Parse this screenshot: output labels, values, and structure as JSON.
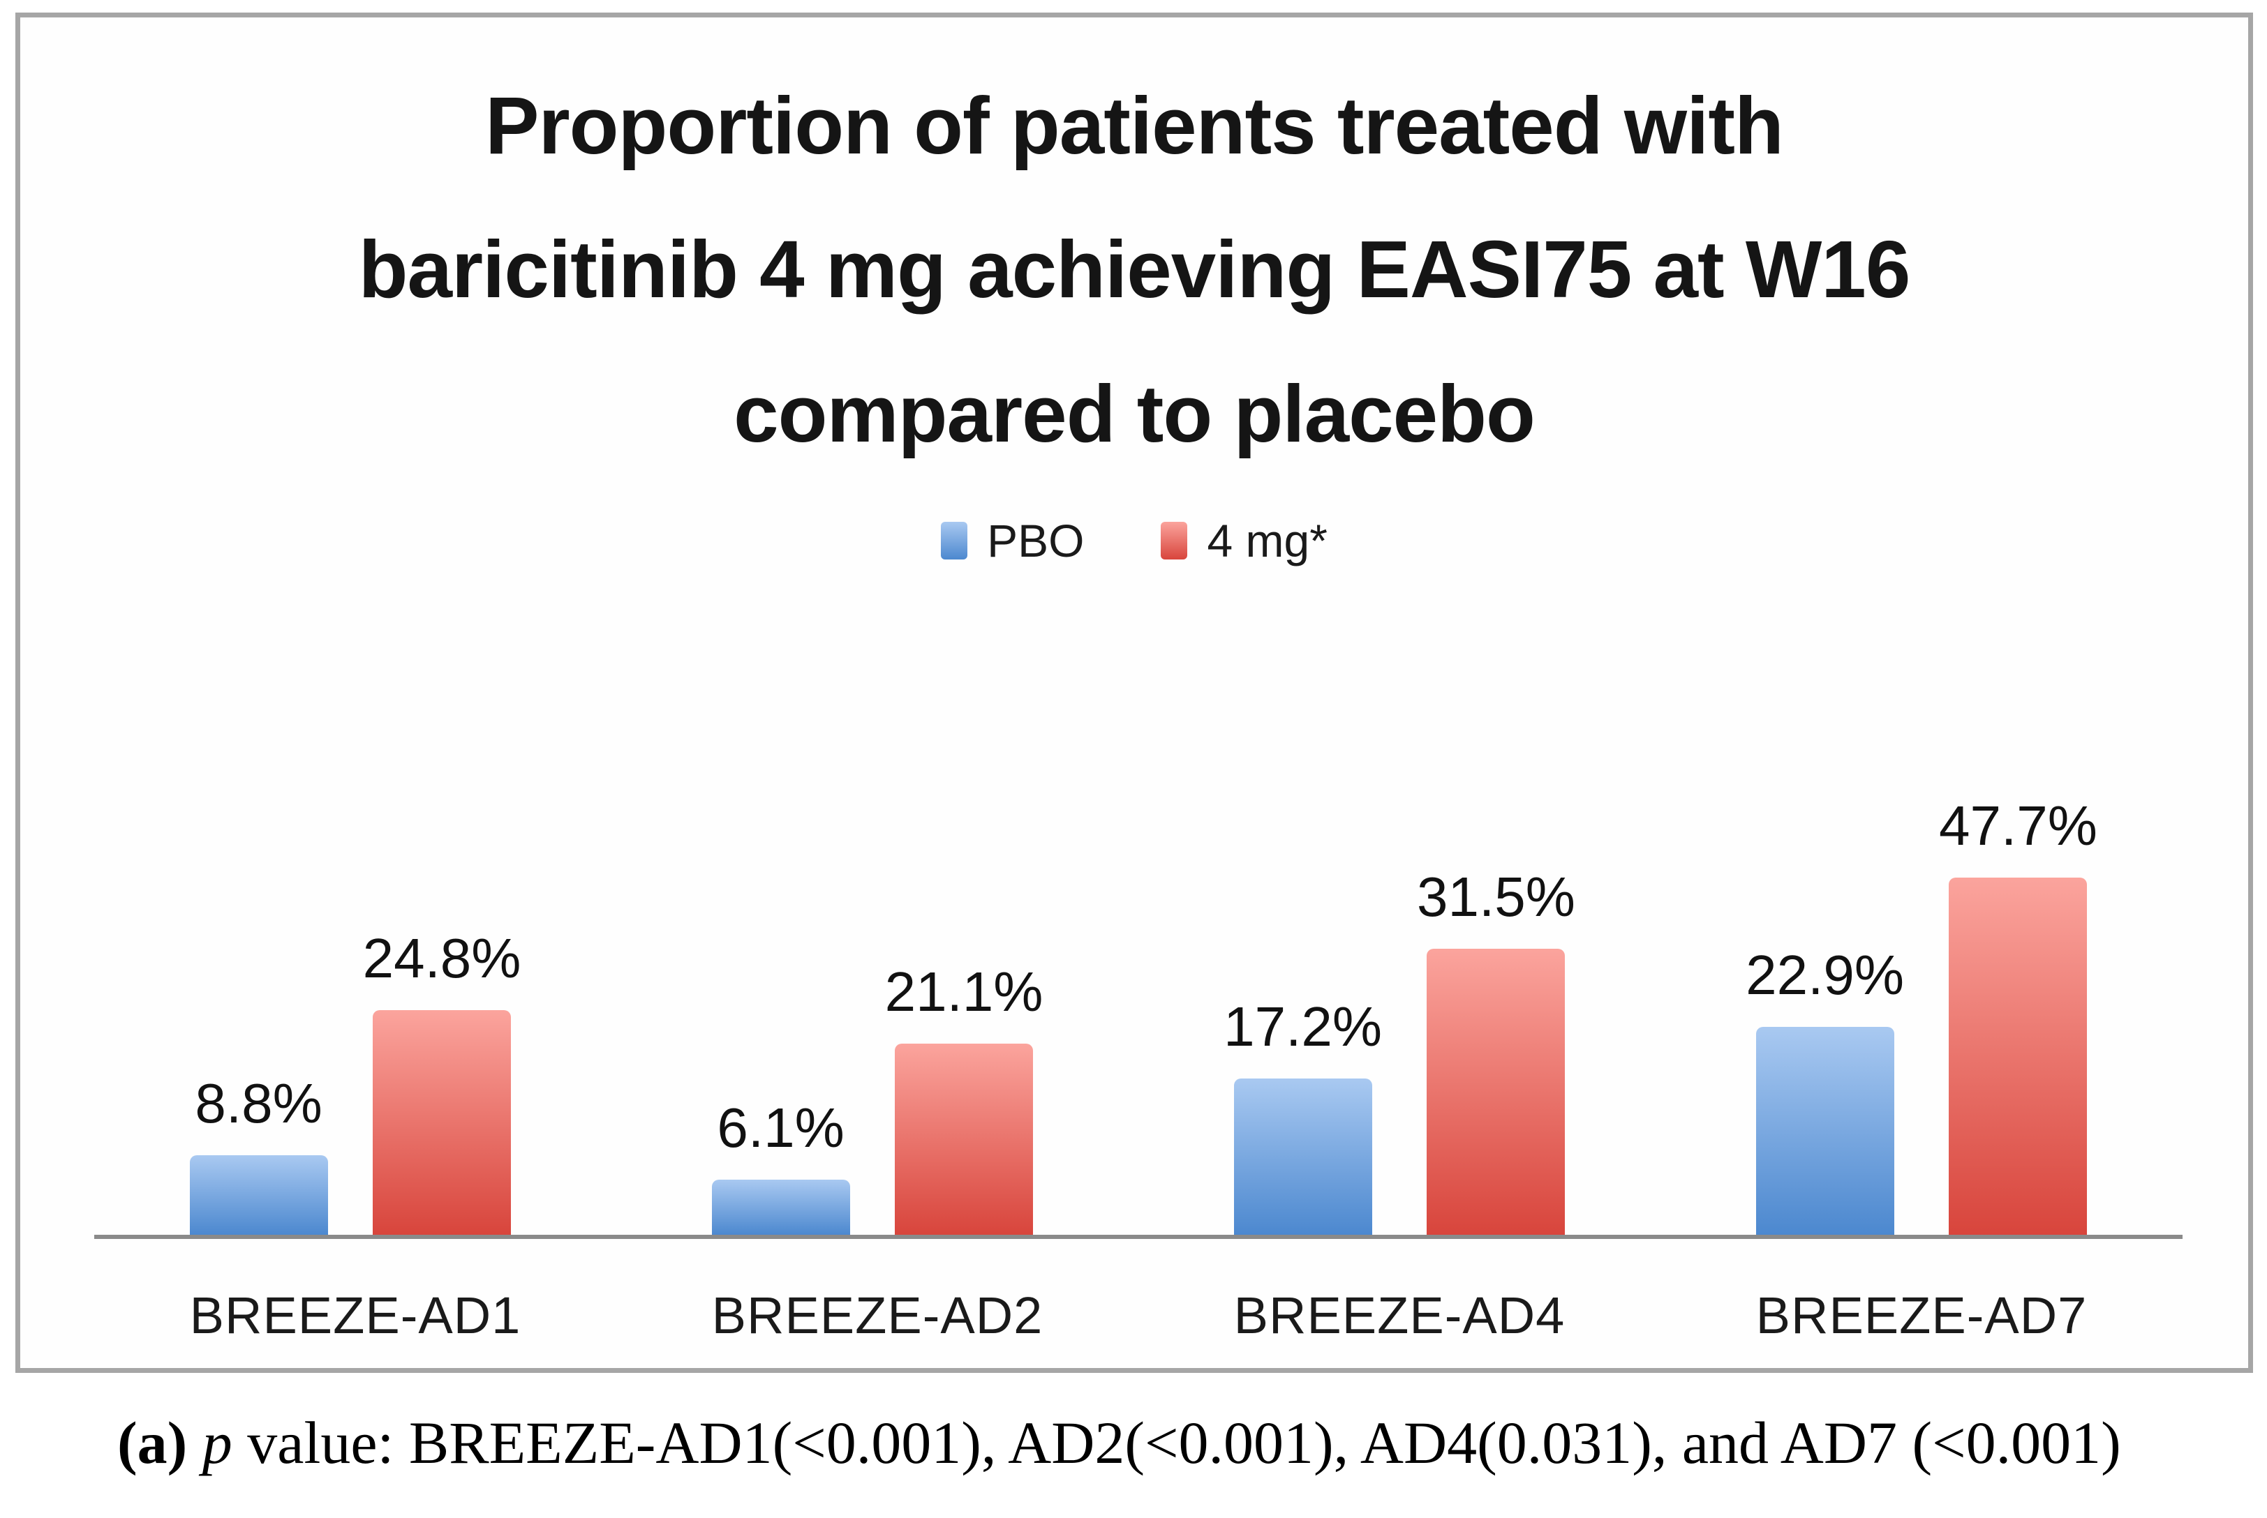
{
  "figure": {
    "title_lines": [
      "Proportion of patients treated with",
      "baricitinib 4 mg achieving EASI75 at W16",
      "compared to placebo"
    ]
  },
  "caption": {
    "marker": "(a)",
    "p_symbol": "p",
    "text": " value: BREEZE-AD1(<0.001), AD2(<0.001), AD4(0.031), and AD7 (<0.001)"
  },
  "colors": {
    "axis_line": "#8a8a8a",
    "panel_border": "#a6a6a6",
    "pbo_gradient_top": "#a9c9f1",
    "pbo_gradient_bottom": "#4c88cf",
    "drug_gradient_top": "#fba49d",
    "drug_gradient_bottom": "#d8453c"
  },
  "chart_data": {
    "type": "bar",
    "title": "Proportion of patients treated with baricitinib 4 mg achieving EASI75 at W16 compared to placebo",
    "categories": [
      "BREEZE-AD1",
      "BREEZE-AD2",
      "BREEZE-AD4",
      "BREEZE-AD7"
    ],
    "series": [
      {
        "name": "PBO",
        "values": [
          8.8,
          6.1,
          17.2,
          22.9
        ],
        "color_top": "#a9c9f1",
        "color_bottom": "#4c88cf"
      },
      {
        "name": "4 mg*",
        "values": [
          24.8,
          21.1,
          31.5,
          47.7
        ],
        "color_top": "#fba49d",
        "color_bottom": "#d8453c"
      }
    ],
    "value_suffix": "%",
    "data_labels": true,
    "xlabel": "",
    "ylabel": "",
    "ylim": [
      0,
      50
    ],
    "grid": false,
    "legend_position": "top-center"
  }
}
